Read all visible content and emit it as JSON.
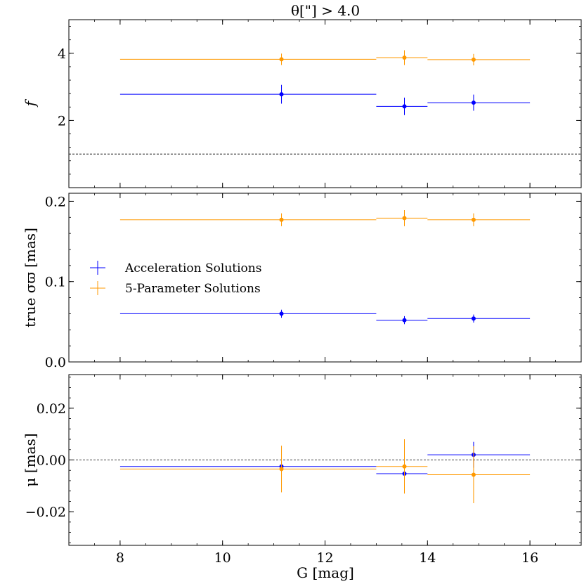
{
  "chart_data": {
    "type": "scatter",
    "title": "θ[\"] > 4.0",
    "xlabel": "G [mag]",
    "xlim": [
      7,
      17
    ],
    "xticks": [
      8,
      10,
      12,
      14,
      16
    ],
    "xtick_labels": [
      "8",
      "10",
      "12",
      "14",
      "16"
    ],
    "legend": {
      "placement": "middle-left",
      "entries": [
        "Acceleration Solutions",
        "5-Parameter Solutions"
      ]
    },
    "colors": {
      "Acceleration Solutions": "#0000ff",
      "5-Parameter Solutions": "#ff9900"
    },
    "panels": [
      {
        "id": "f",
        "ylabel": "f",
        "ylim": [
          0.0,
          5.0
        ],
        "yticks": [
          2,
          4
        ],
        "ytick_labels": [
          "2",
          "4"
        ],
        "hline": 1.0,
        "series": [
          {
            "name": "Acceleration Solutions",
            "x": [
              11.15,
              13.55,
              14.9
            ],
            "xlo": [
              8,
              13,
              14
            ],
            "xhi": [
              13,
              14,
              16
            ],
            "y": [
              2.78,
              2.42,
              2.53
            ],
            "yerr": [
              0.28,
              0.26,
              0.24
            ]
          },
          {
            "name": "5-Parameter Solutions",
            "x": [
              11.15,
              13.55,
              14.9
            ],
            "xlo": [
              8,
              13,
              14
            ],
            "xhi": [
              13,
              14,
              16
            ],
            "y": [
              3.82,
              3.87,
              3.81
            ],
            "yerr": [
              0.17,
              0.22,
              0.17
            ]
          }
        ]
      },
      {
        "id": "sigma",
        "ylabel": "true σϖ [mas]",
        "ylim": [
          0.0,
          0.21
        ],
        "yticks": [
          0.0,
          0.1,
          0.2
        ],
        "ytick_labels": [
          "0.0",
          "0.1",
          "0.2"
        ],
        "hline": null,
        "series": [
          {
            "name": "Acceleration Solutions",
            "x": [
              11.15,
              13.55,
              14.9
            ],
            "xlo": [
              8,
              13,
              14
            ],
            "xhi": [
              13,
              14,
              16
            ],
            "y": [
              0.06,
              0.052,
              0.054
            ],
            "yerr": [
              0.005,
              0.005,
              0.005
            ]
          },
          {
            "name": "5-Parameter Solutions",
            "x": [
              11.15,
              13.55,
              14.9
            ],
            "xlo": [
              8,
              13,
              14
            ],
            "xhi": [
              13,
              14,
              16
            ],
            "y": [
              0.177,
              0.179,
              0.177
            ],
            "yerr": [
              0.008,
              0.01,
              0.008
            ]
          }
        ]
      },
      {
        "id": "mu",
        "ylabel": "μ [mas]",
        "ylim": [
          -0.033,
          0.033
        ],
        "yticks": [
          -0.02,
          0.0,
          0.02
        ],
        "ytick_labels": [
          "−0.02",
          "0.00",
          "0.02"
        ],
        "hline": 0.0,
        "series": [
          {
            "name": "Acceleration Solutions",
            "x": [
              11.15,
              13.55,
              14.9
            ],
            "xlo": [
              8,
              13,
              14
            ],
            "xhi": [
              13,
              14,
              16
            ],
            "y": [
              -0.0025,
              -0.0053,
              0.002
            ],
            "yerr": [
              0.002,
              0.0015,
              0.005
            ]
          },
          {
            "name": "5-Parameter Solutions",
            "x": [
              11.15,
              13.55,
              14.9
            ],
            "xlo": [
              8,
              13,
              14
            ],
            "xhi": [
              13,
              14,
              16
            ],
            "y": [
              -0.0035,
              -0.0025,
              -0.0057
            ],
            "yerr": [
              0.009,
              0.0105,
              0.011
            ]
          }
        ]
      }
    ]
  }
}
